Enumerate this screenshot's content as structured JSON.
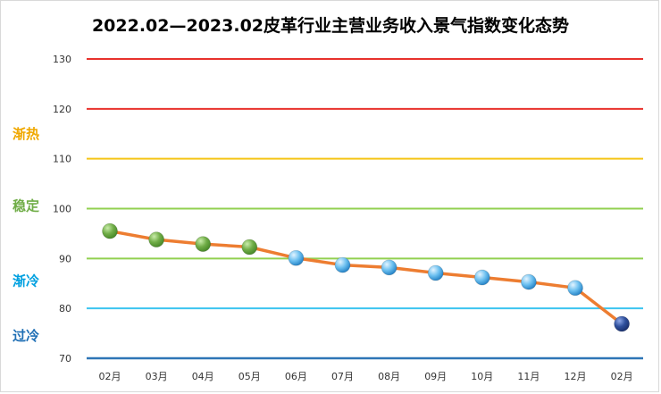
{
  "chart_data": {
    "type": "line",
    "title": "2022.02—2023.02皮革行业主营业务收入景气指数变化态势",
    "xlabel": "",
    "ylabel": "",
    "categories": [
      "02月",
      "03月",
      "04月",
      "05月",
      "06月",
      "07月",
      "08月",
      "09月",
      "10月",
      "11月",
      "12月",
      "02月"
    ],
    "values": [
      95.5,
      93.8,
      92.9,
      92.3,
      90.1,
      88.7,
      88.2,
      87.1,
      86.2,
      85.3,
      84.1,
      76.9
    ],
    "ylim": [
      70,
      130
    ],
    "yticks": [
      70,
      80,
      90,
      100,
      110,
      120,
      130
    ],
    "grid": true,
    "line_color": "#ed7d31",
    "reference_lines": [
      {
        "value": 130,
        "color": "#e8322d"
      },
      {
        "value": 120,
        "color": "#e8322d"
      },
      {
        "value": 110,
        "color": "#f5c518"
      },
      {
        "value": 100,
        "color": "#92d050"
      },
      {
        "value": 90,
        "color": "#92d050"
      },
      {
        "value": 80,
        "color": "#3cc4f0"
      },
      {
        "value": 70,
        "color": "#2e75b6"
      }
    ],
    "zone_labels": [
      {
        "text": "渐热",
        "value": 115,
        "color": "#f0a800"
      },
      {
        "text": "稳定",
        "value": 100.5,
        "color": "#70ad47"
      },
      {
        "text": "渐冷",
        "value": 85.5,
        "color": "#00a0e0"
      },
      {
        "text": "过冷",
        "value": 74.5,
        "color": "#1f6fb5"
      }
    ],
    "marker_colors": [
      {
        "from": 0,
        "to": 3,
        "color": "#70ad47"
      },
      {
        "from": 4,
        "to": 10,
        "color": "#4aa8e8"
      },
      {
        "from": 11,
        "to": 11,
        "color": "#2e4f9c"
      }
    ]
  }
}
